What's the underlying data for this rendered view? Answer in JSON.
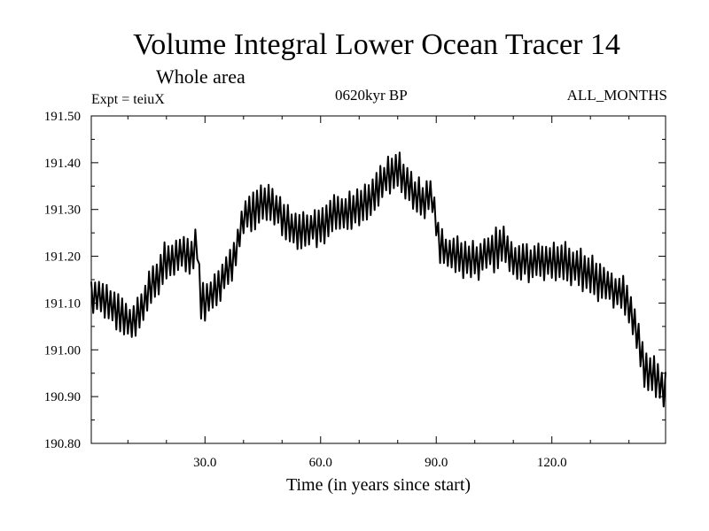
{
  "chart_data": {
    "type": "line",
    "title": "Volume Integral Lower Ocean Tracer 14",
    "subtitle": "Whole area",
    "annotations": {
      "left": "Expt = teiuX",
      "center": "0620kyr BP",
      "right": "ALL_MONTHS"
    },
    "xlabel": "Time (in years since start)",
    "ylabel": "",
    "xlim": [
      0.5,
      149.5
    ],
    "ylim": [
      190.8,
      191.5
    ],
    "xticks": [
      30,
      60,
      90,
      120
    ],
    "xtick_labels": [
      "30.0",
      "60.0",
      "90.0",
      "120.0"
    ],
    "yticks": [
      190.8,
      190.9,
      191.0,
      191.1,
      191.2,
      191.3,
      191.4,
      191.5
    ],
    "ytick_labels": [
      "190.80",
      "190.90",
      "191.00",
      "191.10",
      "191.20",
      "191.30",
      "191.40",
      "191.50"
    ],
    "grid": false,
    "series": [
      {
        "name": "Tracer 14",
        "color": "#000000",
        "trend_x": [
          0.5,
          3,
          6,
          10,
          11,
          15,
          20,
          27,
          28,
          29,
          33,
          37,
          40,
          43,
          46,
          49,
          52,
          55,
          60,
          65,
          70,
          73,
          76,
          80,
          83,
          86,
          89,
          91,
          95,
          100,
          105,
          107,
          110,
          115,
          120,
          125,
          130,
          135,
          140,
          142,
          144,
          146,
          148,
          149.5
        ],
        "trend_y": [
          191.11,
          191.11,
          191.1,
          191.06,
          191.05,
          191.12,
          191.19,
          191.21,
          191.22,
          191.1,
          191.13,
          191.18,
          191.28,
          191.3,
          191.32,
          191.3,
          191.26,
          191.25,
          191.27,
          191.29,
          191.3,
          191.32,
          191.36,
          191.39,
          191.35,
          191.32,
          191.33,
          191.22,
          191.2,
          191.19,
          191.21,
          191.23,
          191.19,
          191.19,
          191.19,
          191.18,
          191.16,
          191.14,
          191.1,
          191.03,
          190.96,
          190.94,
          190.93,
          190.92
        ],
        "seasonal_amplitude": 0.035,
        "samples_per_year": 2
      }
    ]
  }
}
